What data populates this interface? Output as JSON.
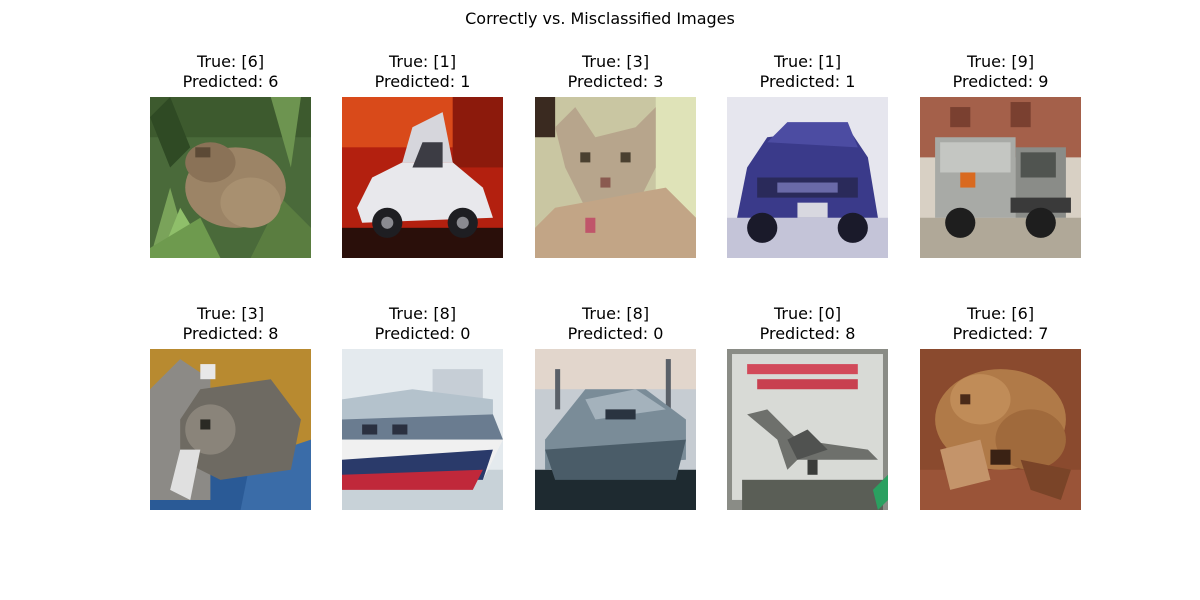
{
  "figure": {
    "title": "Correctly vs. Misclassified Images"
  },
  "panels": [
    {
      "true_label": "True: [6]",
      "predicted_label": "Predicted: 6",
      "depicts": "frog"
    },
    {
      "true_label": "True: [1]",
      "predicted_label": "Predicted: 1",
      "depicts": "white car"
    },
    {
      "true_label": "True: [3]",
      "predicted_label": "Predicted: 3",
      "depicts": "cat"
    },
    {
      "true_label": "True: [1]",
      "predicted_label": "Predicted: 1",
      "depicts": "blue car"
    },
    {
      "true_label": "True: [9]",
      "predicted_label": "Predicted: 9",
      "depicts": "truck"
    },
    {
      "true_label": "True: [3]",
      "predicted_label": "Predicted: 8",
      "depicts": "cat"
    },
    {
      "true_label": "True: [8]",
      "predicted_label": "Predicted: 0",
      "depicts": "ship"
    },
    {
      "true_label": "True: [8]",
      "predicted_label": "Predicted: 0",
      "depicts": "ship"
    },
    {
      "true_label": "True: [0]",
      "predicted_label": "Predicted: 8",
      "depicts": "airplane"
    },
    {
      "true_label": "True: [6]",
      "predicted_label": "Predicted: 7",
      "depicts": "frog"
    }
  ]
}
